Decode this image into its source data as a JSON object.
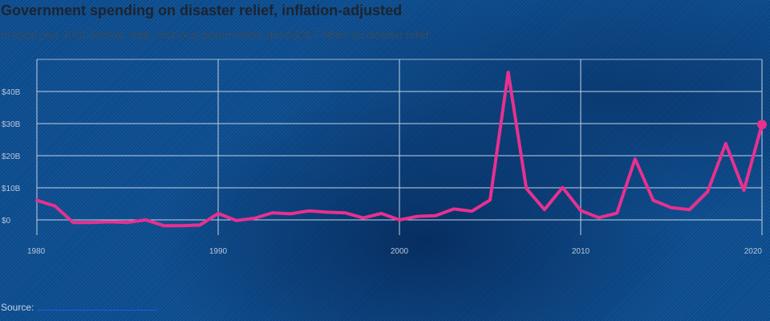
{
  "source_label": "Source:",
  "chart_data": {
    "type": "line",
    "title": "Government spending on disaster relief, inflation-adjusted",
    "subtitle": "In fiscal year 2020, federal, state, and local governments spent $29.7 billion on disaster relief",
    "xlabel": "",
    "ylabel": "",
    "xlim": [
      1980,
      2020
    ],
    "ylim": [
      0,
      46
    ],
    "x_ticks": [
      1980,
      1990,
      2000,
      2010,
      2020
    ],
    "y_ticks": [
      0,
      10,
      20,
      30,
      40
    ],
    "y_tick_labels": [
      "$0",
      "$10B",
      "$20B",
      "$30B",
      "$40B"
    ],
    "grid": true,
    "line_color": "#e8308f",
    "series": [
      {
        "name": "",
        "x": [
          1980,
          1981,
          1982,
          1983,
          1984,
          1985,
          1986,
          1987,
          1988,
          1989,
          1990,
          1991,
          1992,
          1993,
          1994,
          1995,
          1996,
          1997,
          1998,
          1999,
          2000,
          2001,
          2002,
          2003,
          2004,
          2005,
          2006,
          2007,
          2008,
          2009,
          2010,
          2011,
          2012,
          2013,
          2014,
          2015,
          2016,
          2017,
          2018,
          2019,
          2020
        ],
        "y": [
          6.1,
          4.3,
          -0.8,
          -0.8,
          -0.6,
          -0.8,
          0.0,
          -1.8,
          -1.8,
          -1.6,
          2.0,
          -0.2,
          0.5,
          2.2,
          1.9,
          2.8,
          2.4,
          2.2,
          0.6,
          2.0,
          0.0,
          1.1,
          1.3,
          3.4,
          2.7,
          6.2,
          46.0,
          9.8,
          3.2,
          10.1,
          2.9,
          0.7,
          2.1,
          19.0,
          6.1,
          3.8,
          3.2,
          8.8,
          23.8,
          9.2,
          29.7
        ]
      }
    ]
  }
}
